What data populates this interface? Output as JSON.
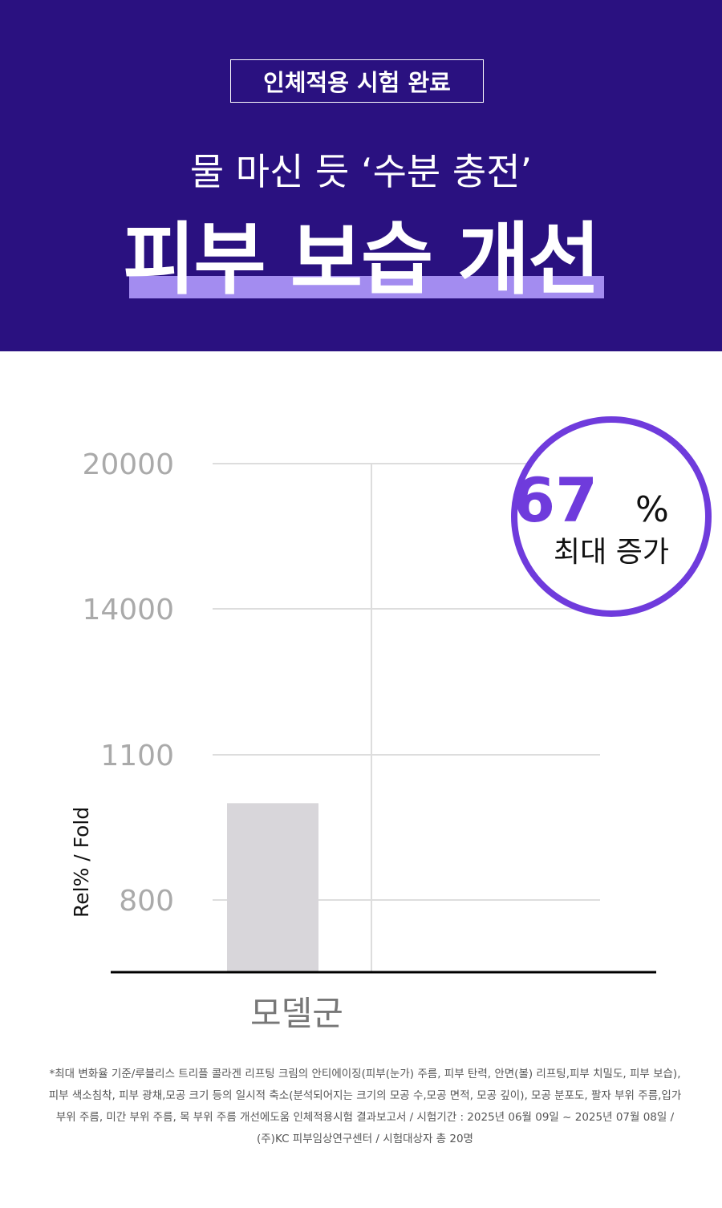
{
  "header": {
    "badge": "인체적용 시험 완료",
    "subtitle": "물 마신 듯 ‘수분 충전’",
    "title": "피부 보습 개선",
    "colors": {
      "background": "#2a1180",
      "highlight": "#a38cf0"
    }
  },
  "callout": {
    "value": "67",
    "unit": "%",
    "label": "최대 증가",
    "color": "#6f3bdc"
  },
  "chart_data": {
    "type": "bar",
    "ylabel": "Rel% / Fold",
    "yticks": [
      "800",
      "1100",
      "14000",
      "20000"
    ],
    "categories": [
      "모델군",
      ""
    ],
    "values": [
      1000,
      null
    ],
    "grid": true,
    "bar_color": "#d8d6da"
  },
  "footnote": "*최대 변화율 기준/루블리스 트리플 콜라겐 리프팅 크림의 안티에이징(피부(눈가) 주름, 피부 탄력, 안면(볼) 리프팅,피부 치밀도, 피부 보습), 피부 색소침착, 피부 광채,모공 크기 등의 일시적 축소(분석되어지는 크기의 모공 수,모공 면적, 모공 깊이), 모공 분포도, 팔자 부위 주름,입가 부위 주름, 미간 부위 주름, 목 부위 주름 개선에도움 인체적용시험 결과보고서 / 시험기간 : 2025년 06월 09일 ~ 2025년 07월 08일 / (주)KC 피부임상연구센터 / 시험대상자 총 20명"
}
